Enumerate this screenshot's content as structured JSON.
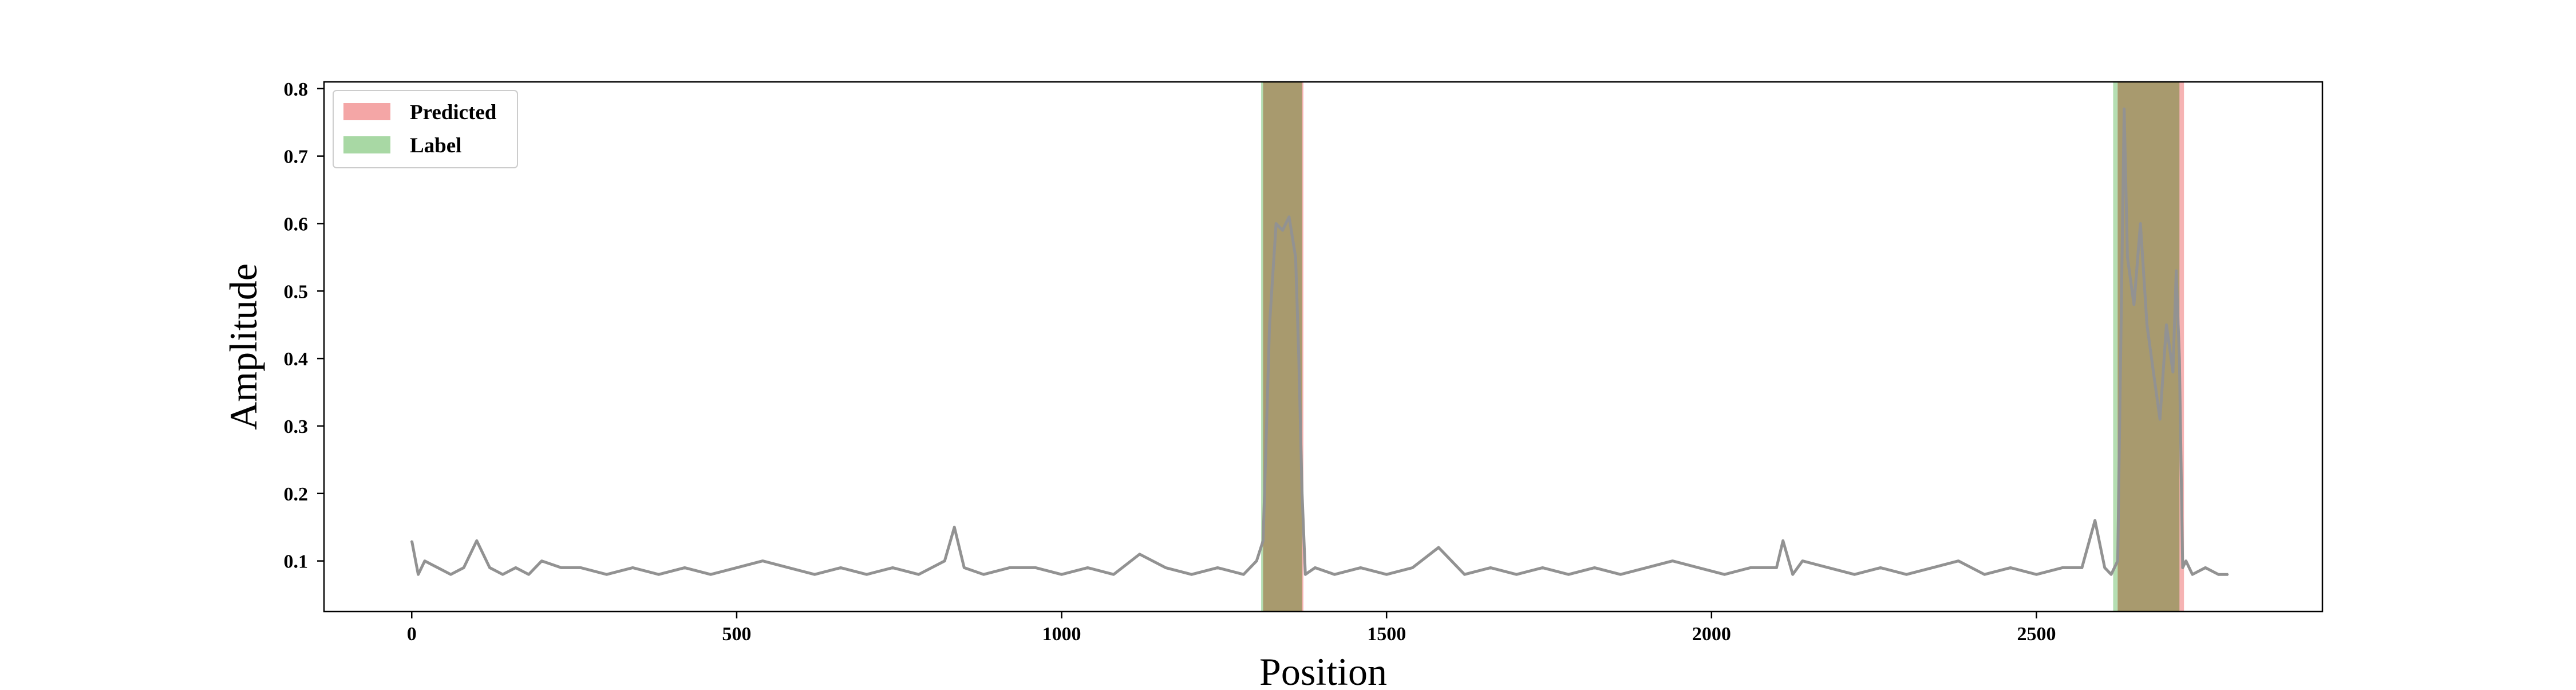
{
  "chart_data": {
    "type": "line",
    "title": "",
    "xlabel": "Position",
    "ylabel": "Amplitude",
    "xlim": [
      -135,
      2940
    ],
    "ylim": [
      0.025,
      0.81
    ],
    "xticks": [
      0,
      500,
      1000,
      1500,
      2000,
      2500
    ],
    "yticks": [
      0.1,
      0.2,
      0.3,
      0.4,
      0.5,
      0.6,
      0.7,
      0.8
    ],
    "grid": false,
    "legend": {
      "position": "top-left",
      "entries": [
        {
          "label": "Predicted",
          "color": "#f4a6a6"
        },
        {
          "label": "Label",
          "color": "#a8d8a4"
        }
      ]
    },
    "regions": {
      "predicted": [
        [
          1310,
          1372
        ],
        [
          2625,
          2727
        ]
      ],
      "label": [
        [
          1307,
          1370
        ],
        [
          2618,
          2720
        ]
      ]
    },
    "series": [
      {
        "color": "#929292",
        "x": [
          0,
          10,
          20,
          40,
          60,
          80,
          100,
          120,
          140,
          160,
          180,
          200,
          230,
          260,
          300,
          340,
          380,
          420,
          460,
          500,
          540,
          580,
          620,
          660,
          700,
          740,
          780,
          820,
          835,
          850,
          880,
          920,
          960,
          1000,
          1040,
          1080,
          1120,
          1160,
          1200,
          1240,
          1280,
          1300,
          1310,
          1320,
          1330,
          1340,
          1350,
          1360,
          1365,
          1370,
          1375,
          1390,
          1420,
          1460,
          1500,
          1540,
          1580,
          1620,
          1660,
          1700,
          1740,
          1780,
          1820,
          1860,
          1900,
          1940,
          1980,
          2020,
          2060,
          2100,
          2110,
          2125,
          2140,
          2180,
          2220,
          2260,
          2300,
          2340,
          2380,
          2420,
          2460,
          2500,
          2540,
          2570,
          2590,
          2605,
          2615,
          2625,
          2635,
          2640,
          2650,
          2660,
          2670,
          2680,
          2690,
          2700,
          2710,
          2715,
          2720,
          2725,
          2730,
          2740,
          2760,
          2780,
          2795
        ],
        "y": [
          0.13,
          0.08,
          0.1,
          0.09,
          0.08,
          0.09,
          0.13,
          0.09,
          0.08,
          0.09,
          0.08,
          0.1,
          0.09,
          0.09,
          0.08,
          0.09,
          0.08,
          0.09,
          0.08,
          0.09,
          0.1,
          0.09,
          0.08,
          0.09,
          0.08,
          0.09,
          0.08,
          0.1,
          0.15,
          0.09,
          0.08,
          0.09,
          0.09,
          0.08,
          0.09,
          0.08,
          0.11,
          0.09,
          0.08,
          0.09,
          0.08,
          0.1,
          0.13,
          0.45,
          0.6,
          0.59,
          0.61,
          0.55,
          0.4,
          0.2,
          0.08,
          0.09,
          0.08,
          0.09,
          0.08,
          0.09,
          0.12,
          0.08,
          0.09,
          0.08,
          0.09,
          0.08,
          0.09,
          0.08,
          0.09,
          0.1,
          0.09,
          0.08,
          0.09,
          0.09,
          0.13,
          0.08,
          0.1,
          0.09,
          0.08,
          0.09,
          0.08,
          0.09,
          0.1,
          0.08,
          0.09,
          0.08,
          0.09,
          0.09,
          0.16,
          0.09,
          0.08,
          0.1,
          0.77,
          0.55,
          0.48,
          0.6,
          0.45,
          0.38,
          0.31,
          0.45,
          0.38,
          0.53,
          0.4,
          0.09,
          0.1,
          0.08,
          0.09,
          0.08,
          0.08
        ]
      }
    ]
  }
}
